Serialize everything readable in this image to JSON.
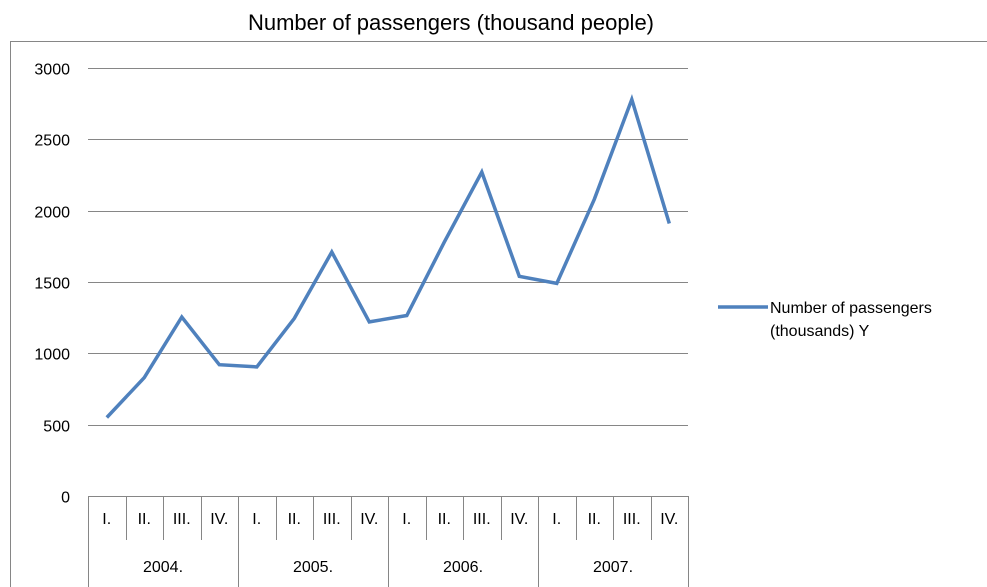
{
  "chart_data": {
    "type": "line",
    "title": "Number of passengers (thousand people)",
    "xlabel": "",
    "ylabel": "",
    "ylim": [
      0,
      3000
    ],
    "y_ticks": [
      "0",
      "500",
      "1000",
      "1500",
      "2000",
      "2500",
      "3000"
    ],
    "y_tick_values": [
      0,
      500,
      1000,
      1500,
      2000,
      2500,
      3000
    ],
    "years": [
      "2004.",
      "2005.",
      "2006.",
      "2007."
    ],
    "quarters": [
      "I.",
      "II.",
      "III.",
      "IV."
    ],
    "categories": [
      "2004. I.",
      "2004. II.",
      "2004. III.",
      "2004. IV.",
      "2005. I.",
      "2005. II.",
      "2005. III.",
      "2005. IV.",
      "2006. I.",
      "2006. II.",
      "2006. III.",
      "2006. IV.",
      "2007. I.",
      "2007. II.",
      "2007. III.",
      "2007. IV."
    ],
    "series": [
      {
        "name": "Number of passengers (thousands) Y",
        "color": "#4f81bd",
        "values": [
          550,
          830,
          1255,
          920,
          905,
          1245,
          1710,
          1220,
          1265,
          1780,
          2270,
          1540,
          1490,
          2080,
          2780,
          1910
        ]
      }
    ],
    "legend_position": "right",
    "grid": true,
    "colors": {
      "line": "#4f81bd",
      "grid": "#868686",
      "axis": "#868686"
    }
  }
}
